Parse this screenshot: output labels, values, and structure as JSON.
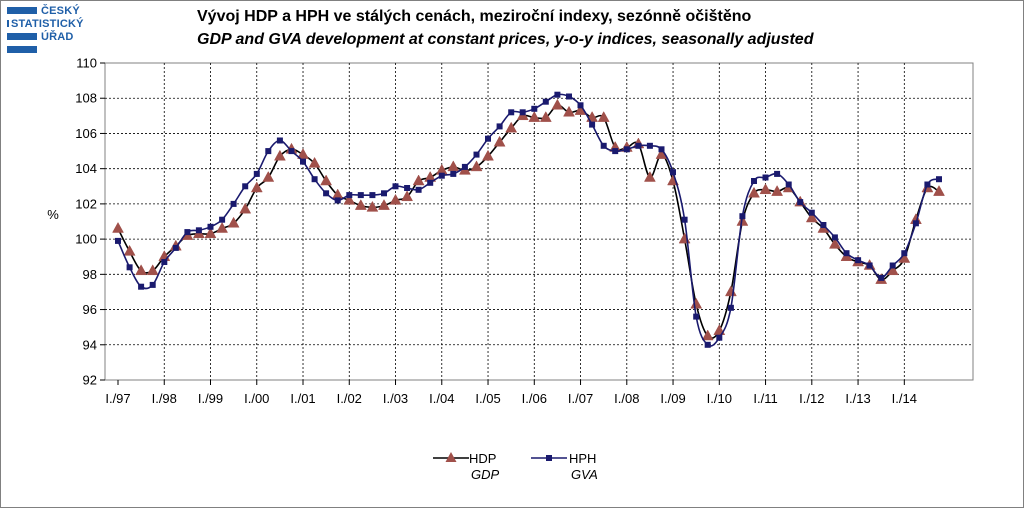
{
  "logo": {
    "line1": "ČESKÝ",
    "line2": "STATISTICKÝ",
    "line3": "ÚŘAD",
    "color": "#1f5fa8"
  },
  "title_cz": "Vývoj HDP a HPH ve stálých cenách, meziroční indexy, sezónně očištěno",
  "title_en": "GDP and GVA development at constant prices, y-o-y indices, seasonally adjusted",
  "chart_data": {
    "type": "line",
    "ylabel": "%",
    "ylim": [
      92,
      110
    ],
    "yticks": [
      92,
      94,
      96,
      98,
      100,
      102,
      104,
      106,
      108,
      110
    ],
    "grid": true,
    "legend_position": "bottom-center",
    "year_labels": [
      "I./97",
      "I./98",
      "I./99",
      "I./00",
      "I./01",
      "I./02",
      "I./03",
      "I./04",
      "I./05",
      "I./06",
      "I./07",
      "I./08",
      "I./09",
      "I./10",
      "I./11",
      "I./12",
      "I./13",
      "I./14"
    ],
    "series": [
      {
        "name": "HDP",
        "name_en": "GDP",
        "marker": "triangle",
        "color": "#a0504a",
        "line_color": "#000000",
        "values": [
          100.6,
          99.3,
          98.2,
          98.2,
          99.0,
          99.6,
          100.2,
          100.3,
          100.3,
          100.6,
          100.9,
          101.7,
          102.9,
          103.5,
          104.7,
          105.1,
          104.8,
          104.3,
          103.3,
          102.5,
          102.2,
          101.9,
          101.8,
          101.9,
          102.2,
          102.4,
          103.3,
          103.5,
          103.9,
          104.1,
          103.9,
          104.1,
          104.7,
          105.5,
          106.3,
          107.0,
          106.9,
          106.9,
          107.6,
          107.2,
          107.3,
          106.9,
          106.9,
          105.2,
          105.2,
          105.4,
          103.5,
          104.8,
          103.3,
          100.0,
          96.3,
          94.5,
          94.8,
          97.0,
          101.0,
          102.6,
          102.8,
          102.7,
          102.9,
          102.1,
          101.2,
          100.6,
          99.7,
          99.0,
          98.7,
          98.5,
          97.7,
          98.2,
          98.9,
          101.1,
          102.9,
          102.7
        ]
      },
      {
        "name": "HPH",
        "name_en": "GVA",
        "marker": "square",
        "color": "#1a1a6e",
        "line_color": "#1a1a6e",
        "values": [
          99.9,
          98.4,
          97.3,
          97.4,
          98.7,
          99.5,
          100.4,
          100.5,
          100.7,
          101.1,
          102.0,
          103.0,
          103.7,
          105.0,
          105.6,
          105.0,
          104.4,
          103.4,
          102.6,
          102.2,
          102.5,
          102.5,
          102.5,
          102.6,
          103.0,
          102.9,
          102.8,
          103.2,
          103.6,
          103.7,
          104.1,
          104.8,
          105.7,
          106.4,
          107.2,
          107.2,
          107.4,
          107.8,
          108.2,
          108.1,
          107.6,
          106.5,
          105.3,
          105.0,
          105.1,
          105.3,
          105.3,
          105.1,
          103.8,
          101.1,
          95.6,
          94.0,
          94.4,
          96.1,
          101.3,
          103.3,
          103.5,
          103.7,
          103.1,
          102.1,
          101.5,
          100.8,
          100.1,
          99.2,
          98.8,
          98.5,
          97.8,
          98.5,
          99.2,
          100.9,
          103.1,
          103.4
        ]
      }
    ]
  }
}
